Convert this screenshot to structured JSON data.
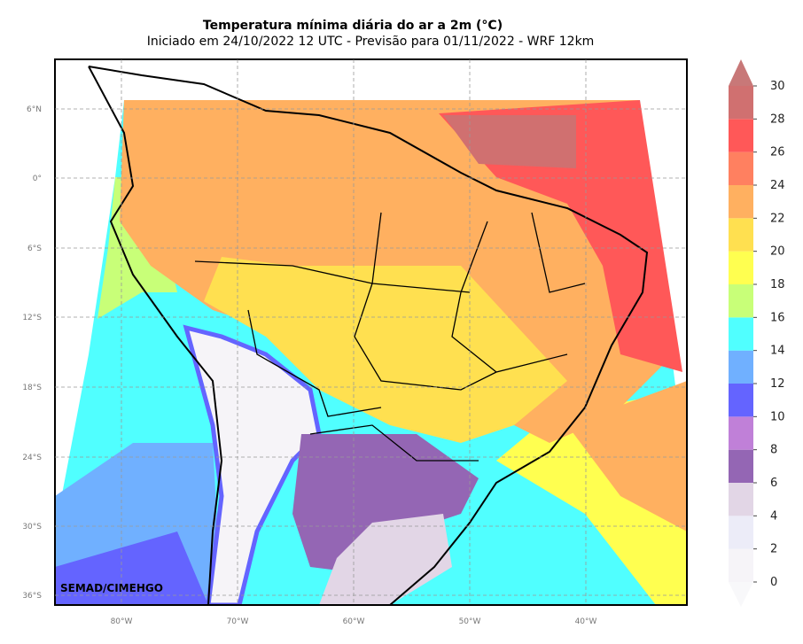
{
  "title": "Temperatura mínima diária do ar a 2m (°C)",
  "subtitle": "Iniciado em 24/10/2022 12 UTC - Previsão para 01/11/2022 - WRF 12km",
  "credit": "SEMAD/CIMEHGO",
  "map": {
    "lat_labels": [
      "6°N",
      "0°",
      "6°S",
      "12°S",
      "18°S",
      "24°S",
      "30°S",
      "36°S"
    ],
    "lon_labels": [
      "80°W",
      "70°W",
      "60°W",
      "50°W",
      "40°W"
    ]
  },
  "colorbar": {
    "ticks": [
      0,
      2,
      4,
      6,
      8,
      10,
      12,
      14,
      16,
      18,
      20,
      22,
      24,
      26,
      28,
      30
    ],
    "colors": [
      "#f6f4f8",
      "#ececf8",
      "#e2d6e6",
      "#9466b4",
      "#c080d8",
      "#6464ff",
      "#70b0ff",
      "#50ffff",
      "#c8ff78",
      "#ffff50",
      "#ffe050",
      "#ffb060",
      "#ff8060",
      "#ff5858",
      "#d07070"
    ],
    "under_color": "#f8f8fa",
    "over_color": "#c87878"
  }
}
